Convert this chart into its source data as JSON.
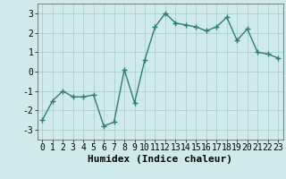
{
  "x": [
    0,
    1,
    2,
    3,
    4,
    5,
    6,
    7,
    8,
    9,
    10,
    11,
    12,
    13,
    14,
    15,
    16,
    17,
    18,
    19,
    20,
    21,
    22,
    23
  ],
  "y": [
    -2.5,
    -1.5,
    -1.0,
    -1.3,
    -1.3,
    -1.2,
    -2.8,
    -2.6,
    0.1,
    -1.6,
    0.6,
    2.3,
    3.0,
    2.5,
    2.4,
    2.3,
    2.1,
    2.3,
    2.8,
    1.6,
    2.2,
    1.0,
    0.9,
    0.7
  ],
  "title": "",
  "xlabel": "Humidex (Indice chaleur)",
  "ylabel": "",
  "xlim": [
    -0.5,
    23.5
  ],
  "ylim": [
    -3.5,
    3.5
  ],
  "yticks": [
    -3,
    -2,
    -1,
    0,
    1,
    2,
    3
  ],
  "xticks": [
    0,
    1,
    2,
    3,
    4,
    5,
    6,
    7,
    8,
    9,
    10,
    11,
    12,
    13,
    14,
    15,
    16,
    17,
    18,
    19,
    20,
    21,
    22,
    23
  ],
  "line_color": "#2e7d6e",
  "bg_color": "#ceeaea",
  "grid_color": "#aacece",
  "marker": "+",
  "marker_size": 4,
  "marker_edge_width": 1.0,
  "line_width": 1.0,
  "xlabel_fontsize": 8,
  "tick_fontsize": 7
}
